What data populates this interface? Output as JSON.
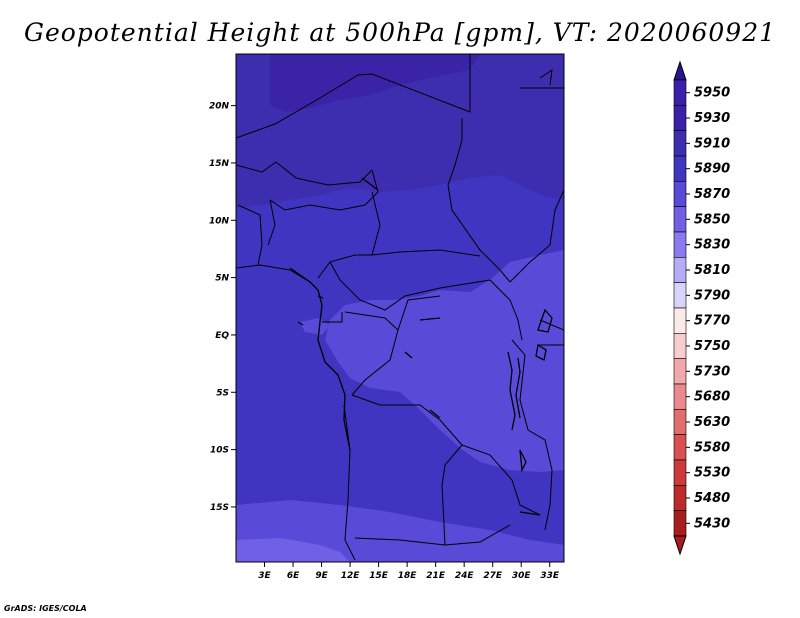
{
  "title": "Geopotential Height at 500hPa [gpm], VT: 2020060921",
  "credit": "GrADS: IGES/COLA",
  "map": {
    "lat_ticks": [
      {
        "lat": 20,
        "label": "20N"
      },
      {
        "lat": 15,
        "label": "15N"
      },
      {
        "lat": 10,
        "label": "10N"
      },
      {
        "lat": 5,
        "label": "5N"
      },
      {
        "lat": 0,
        "label": "EQ"
      },
      {
        "lat": -5,
        "label": "5S"
      },
      {
        "lat": -10,
        "label": "10S"
      },
      {
        "lat": -15,
        "label": "15S"
      }
    ],
    "lon_ticks": [
      {
        "lon": 3,
        "label": "3E"
      },
      {
        "lon": 6,
        "label": "6E"
      },
      {
        "lon": 9,
        "label": "9E"
      },
      {
        "lon": 12,
        "label": "12E"
      },
      {
        "lon": 15,
        "label": "15E"
      },
      {
        "lon": 18,
        "label": "18E"
      },
      {
        "lon": 21,
        "label": "21E"
      },
      {
        "lon": 24,
        "label": "24E"
      },
      {
        "lon": 27,
        "label": "27E"
      },
      {
        "lon": 30,
        "label": "30E"
      },
      {
        "lon": 33,
        "label": "33E"
      }
    ],
    "lon_range": [
      0,
      34.5
    ],
    "lat_range": [
      -19.8,
      24.5
    ]
  },
  "colorbar": {
    "levels": [
      {
        "label": "5950",
        "color": "#3a1fa8"
      },
      {
        "label": "5930",
        "color": "#3a1fa8"
      },
      {
        "label": "5910",
        "color": "#3c2eae"
      },
      {
        "label": "5890",
        "color": "#4035c0"
      },
      {
        "label": "5870",
        "color": "#5a4ad8"
      },
      {
        "label": "5850",
        "color": "#7060e6"
      },
      {
        "label": "5830",
        "color": "#8a7cf0"
      },
      {
        "label": "5810",
        "color": "#b4acf6"
      },
      {
        "label": "5790",
        "color": "#d8d4fb"
      },
      {
        "label": "5770",
        "color": "#fde8ea"
      },
      {
        "label": "5750",
        "color": "#f8cdd0"
      },
      {
        "label": "5730",
        "color": "#f2a8ac"
      },
      {
        "label": "5680",
        "color": "#ea8a8e"
      },
      {
        "label": "5630",
        "color": "#e06d70"
      },
      {
        "label": "5580",
        "color": "#d85050"
      },
      {
        "label": "5530",
        "color": "#cc3a3a"
      },
      {
        "label": "5480",
        "color": "#bd2a2a"
      },
      {
        "label": "5430",
        "color": "#a81d1d"
      }
    ],
    "top_arrow_color": "#2a1590",
    "bottom_arrow_color": "#a81d1d"
  },
  "field_colors": {
    "c5930": "#3a23a6",
    "c5910": "#3c2eae",
    "c5890": "#4035c0",
    "c5870": "#5a4ad8",
    "c5850": "#7060e6"
  }
}
